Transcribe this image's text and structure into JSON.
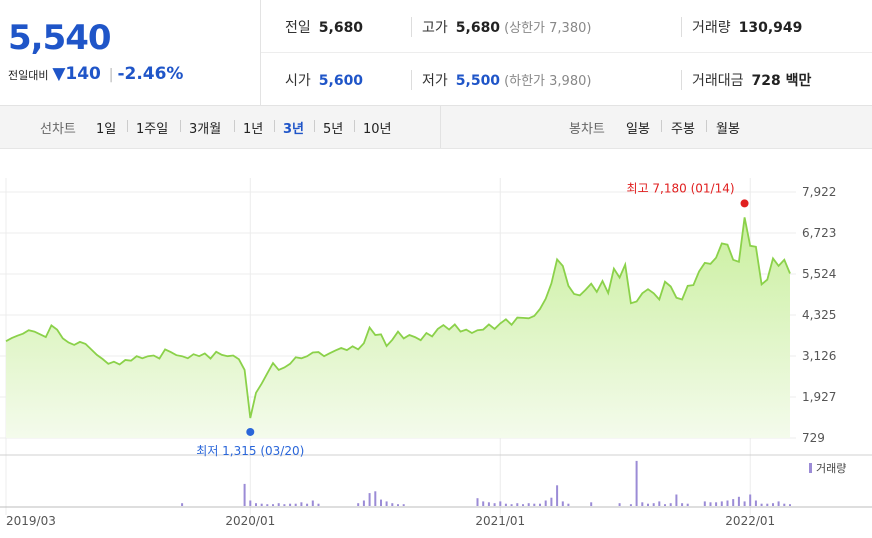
{
  "quote": {
    "price": "5,540",
    "change_label": "전일대비",
    "change_arrow": "▼",
    "change_value": "140",
    "change_rate": "-2.46%",
    "prev_close_label": "전일",
    "prev_close": "5,680",
    "high_label": "고가",
    "high": "5,680",
    "upper_limit": "(상한가 7,380)",
    "volume_label": "거래량",
    "volume": "130,949",
    "open_label": "시가",
    "open": "5,600",
    "low_label": "저가",
    "low": "5,500",
    "lower_limit": "(하한가 3,980)",
    "amount_label": "거래대금",
    "amount": "728 백만"
  },
  "toolbar": {
    "line_title": "선차트",
    "periods": [
      "1일",
      "1주일",
      "3개월",
      "1년",
      "3년",
      "5년",
      "10년"
    ],
    "selected_period": "3년",
    "candle_title": "봉차트",
    "candles": [
      "일봉",
      "주봉",
      "월봉"
    ]
  },
  "chart_data": {
    "type": "area",
    "y_ticks": [
      "7,922",
      "6,723",
      "5,524",
      "4,325",
      "3,126",
      "1,927",
      "729"
    ],
    "ylim": [
      729,
      7922
    ],
    "x_ticks": [
      "2019/03",
      "2020/01",
      "2021/01",
      "2022/01"
    ],
    "max_annotation": "최고 7,180 (01/14)",
    "min_annotation": "최저 1,315 (03/20)",
    "volume_legend": "거래량",
    "colors": {
      "line": "#8bd14a",
      "fill_top": "#c9ef9d",
      "max": "#e02020",
      "min": "#2a66d9",
      "volume": "#9b8bd6"
    },
    "series": [
      {
        "values": [
          3560,
          3650,
          3720,
          3780,
          3880,
          3840,
          3760,
          3680,
          4020,
          3900,
          3640,
          3520,
          3450,
          3540,
          3480,
          3320,
          3160,
          3040,
          2900,
          2960,
          2880,
          3010,
          2990,
          3120,
          3060,
          3120,
          3140,
          3050,
          3320,
          3240,
          3150,
          3120,
          3060,
          3180,
          3120,
          3200,
          3050,
          3250,
          3160,
          3120,
          3140,
          3030,
          2720,
          1315,
          2050,
          2320,
          2620,
          2920,
          2720,
          2790,
          2900,
          3090,
          3060,
          3120,
          3230,
          3240,
          3120,
          3210,
          3290,
          3360,
          3300,
          3410,
          3320,
          3500,
          3960,
          3740,
          3760,
          3420,
          3600,
          3840,
          3640,
          3740,
          3680,
          3590,
          3800,
          3700,
          3920,
          4030,
          3900,
          4050,
          3840,
          3900,
          3800,
          3880,
          3900,
          4050,
          3920,
          4080,
          4200,
          4040,
          4250,
          4240,
          4230,
          4300,
          4500,
          4800,
          5250,
          5950,
          5760,
          5180,
          4940,
          4900,
          5060,
          5240,
          5000,
          5320,
          4970,
          5680,
          5420,
          5800,
          4670,
          4720,
          4960,
          5080,
          4960,
          4780,
          5300,
          5160,
          4830,
          4780,
          5180,
          5200,
          5600,
          5850,
          5820,
          6000,
          6420,
          6380,
          5940,
          5880,
          7180,
          6350,
          6320,
          5220,
          5360,
          5980,
          5760,
          5940,
          5540
        ],
        "volume": [
          0,
          0,
          0,
          0,
          0,
          0,
          0,
          0,
          0,
          0,
          0,
          0,
          0,
          0,
          0,
          0,
          0,
          0,
          0,
          0,
          0,
          0,
          0,
          0,
          0,
          0,
          0,
          0,
          0,
          0,
          0,
          0.06,
          0,
          0,
          0,
          0,
          0,
          0,
          0,
          0,
          0,
          0,
          0.48,
          0.12,
          0.06,
          0.05,
          0.04,
          0.04,
          0.06,
          0.04,
          0.05,
          0.05,
          0.08,
          0.05,
          0.12,
          0.05,
          0,
          0,
          0,
          0,
          0,
          0,
          0.06,
          0.12,
          0.28,
          0.32,
          0.14,
          0.1,
          0.06,
          0.04,
          0.04,
          0,
          0,
          0,
          0,
          0,
          0,
          0,
          0,
          0,
          0,
          0,
          0,
          0.17,
          0.1,
          0.08,
          0.06,
          0.1,
          0.05,
          0.04,
          0.06,
          0.04,
          0.06,
          0.05,
          0.05,
          0.12,
          0.18,
          0.45,
          0.1,
          0.05,
          0,
          0,
          0,
          0.08,
          0,
          0,
          0,
          0,
          0.06,
          0,
          0.04,
          0.98,
          0.08,
          0.05,
          0.06,
          0.1,
          0.04,
          0.06,
          0.25,
          0.06,
          0.05,
          0,
          0,
          0.1,
          0.08,
          0.08,
          0.1,
          0.12,
          0.15,
          0.2,
          0.1,
          0.25,
          0.12,
          0.05,
          0.05,
          0.06,
          0.1,
          0.05,
          0.04
        ]
      }
    ]
  }
}
